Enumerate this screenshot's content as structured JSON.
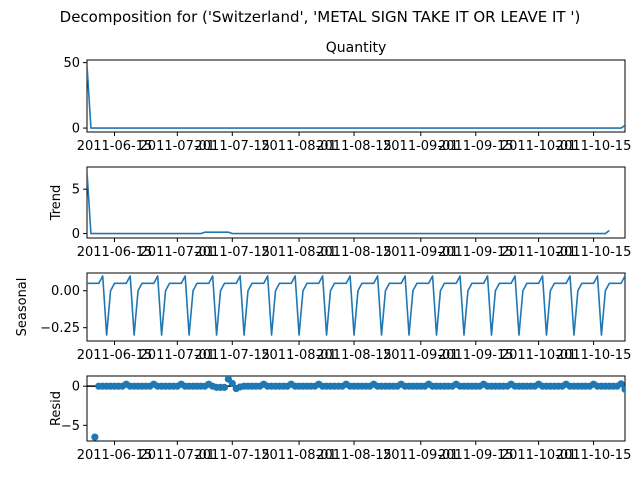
{
  "figure": {
    "suptitle": "Decomposition for ('Switzerland', 'METAL SIGN TAKE IT OR LEAVE IT ')"
  },
  "chart_data": [
    {
      "type": "line",
      "title": "Quantity",
      "ylabel": "",
      "xticks": [
        "2011-06-15",
        "2011-07-01",
        "2011-07-15",
        "2011-08-01",
        "2011-08-15",
        "2011-09-01",
        "2011-09-15",
        "2011-10-01",
        "2011-10-15"
      ],
      "yticks": [
        "0",
        "50"
      ],
      "ylim": [
        -3,
        52
      ],
      "x_start": "2011-06-08",
      "x_end": "2011-10-23",
      "series": [
        {
          "color": "#1f77b4",
          "values": [
            48,
            0,
            0,
            0,
            0,
            0,
            0,
            0,
            0,
            0,
            0,
            0,
            0,
            0,
            0,
            0,
            0,
            0,
            0,
            0,
            0,
            0,
            0,
            0,
            0,
            0,
            0,
            0,
            0,
            0,
            0,
            0,
            0,
            0,
            0,
            0,
            0,
            0,
            0,
            0,
            0,
            0,
            0,
            0,
            0,
            0,
            0,
            0,
            0,
            0,
            0,
            0,
            0,
            0,
            0,
            0,
            0,
            0,
            0,
            0,
            0,
            0,
            0,
            0,
            0,
            0,
            0,
            0,
            0,
            0,
            0,
            0,
            0,
            0,
            0,
            0,
            0,
            0,
            0,
            0,
            0,
            0,
            0,
            0,
            0,
            0,
            0,
            0,
            0,
            0,
            0,
            0,
            0,
            0,
            0,
            0,
            0,
            0,
            0,
            0,
            0,
            0,
            0,
            0,
            0,
            0,
            0,
            0,
            0,
            0,
            0,
            0,
            0,
            0,
            0,
            0,
            0,
            0,
            0,
            0,
            0,
            0,
            0,
            0,
            0,
            0,
            0,
            0,
            0,
            0,
            0,
            0,
            0,
            0,
            0,
            0,
            0,
            2
          ]
        }
      ]
    },
    {
      "type": "line",
      "title": "",
      "ylabel": "Trend",
      "xticks": [
        "2011-06-15",
        "2011-07-01",
        "2011-07-15",
        "2011-08-01",
        "2011-08-15",
        "2011-09-01",
        "2011-09-15",
        "2011-10-01",
        "2011-10-15"
      ],
      "yticks": [
        "0",
        "5"
      ],
      "ylim": [
        -0.5,
        7.5
      ],
      "x_start": "2011-06-08",
      "x_end": "2011-10-23",
      "series": [
        {
          "color": "#1f77b4",
          "values": [
            6.9,
            0,
            0,
            0,
            0,
            0,
            0,
            0,
            0,
            0,
            0,
            0,
            0,
            0,
            0,
            0,
            0,
            0,
            0,
            0,
            0,
            0,
            0,
            0,
            0,
            0,
            0,
            0,
            0,
            0,
            0.15,
            0.15,
            0.15,
            0.15,
            0.15,
            0.15,
            0.15,
            0,
            0,
            0,
            0,
            0,
            0,
            0,
            0,
            0,
            0,
            0,
            0,
            0,
            0,
            0,
            0,
            0,
            0,
            0,
            0,
            0,
            0,
            0,
            0,
            0,
            0,
            0,
            0,
            0,
            0,
            0,
            0,
            0,
            0,
            0,
            0,
            0,
            0,
            0,
            0,
            0,
            0,
            0,
            0,
            0,
            0,
            0,
            0,
            0,
            0,
            0,
            0,
            0,
            0,
            0,
            0,
            0,
            0,
            0,
            0,
            0,
            0,
            0,
            0,
            0,
            0,
            0,
            0,
            0,
            0,
            0,
            0,
            0,
            0,
            0,
            0,
            0,
            0,
            0,
            0,
            0,
            0,
            0,
            0,
            0,
            0,
            0,
            0,
            0,
            0,
            0,
            0,
            0,
            0,
            0,
            0,
            0.35
          ]
        }
      ]
    },
    {
      "type": "line",
      "title": "",
      "ylabel": "Seasonal",
      "xticks": [
        "2011-06-15",
        "2011-07-01",
        "2011-07-15",
        "2011-08-01",
        "2011-08-15",
        "2011-09-01",
        "2011-09-15",
        "2011-10-01",
        "2011-10-15"
      ],
      "yticks": [
        "0.00",
        "−0.25"
      ],
      "ylim": [
        -0.34,
        0.12
      ],
      "x_start": "2011-06-08",
      "x_end": "2011-10-23",
      "pattern_period": 7,
      "pattern": [
        0.05,
        0.05,
        0.05,
        0.05,
        0.1,
        -0.3,
        0.0
      ],
      "pattern_phase": 0
    },
    {
      "type": "scatter",
      "title": "",
      "ylabel": "Resid",
      "xticks": [
        "2011-06-15",
        "2011-07-01",
        "2011-07-15",
        "2011-08-01",
        "2011-08-15",
        "2011-09-01",
        "2011-09-15",
        "2011-10-01",
        "2011-10-15"
      ],
      "yticks": [
        "−5",
        "0"
      ],
      "ylim": [
        -7.0,
        1.3
      ],
      "x_start": "2011-06-08",
      "x_end": "2011-10-23",
      "baseline": 0,
      "points": [
        {
          "x": 2,
          "y": -6.5
        },
        {
          "x": 3,
          "y": 0
        },
        {
          "x": 4,
          "y": 0
        },
        {
          "x": 5,
          "y": 0
        },
        {
          "x": 6,
          "y": 0
        },
        {
          "x": 7,
          "y": 0
        },
        {
          "x": 8,
          "y": 0
        },
        {
          "x": 9,
          "y": 0
        },
        {
          "x": 10,
          "y": 0.25
        },
        {
          "x": 11,
          "y": 0
        },
        {
          "x": 12,
          "y": 0
        },
        {
          "x": 13,
          "y": 0
        },
        {
          "x": 14,
          "y": 0
        },
        {
          "x": 15,
          "y": 0
        },
        {
          "x": 16,
          "y": 0
        },
        {
          "x": 17,
          "y": 0.25
        },
        {
          "x": 18,
          "y": 0
        },
        {
          "x": 19,
          "y": 0
        },
        {
          "x": 20,
          "y": 0
        },
        {
          "x": 21,
          "y": 0
        },
        {
          "x": 22,
          "y": 0
        },
        {
          "x": 23,
          "y": 0
        },
        {
          "x": 24,
          "y": 0.25
        },
        {
          "x": 25,
          "y": 0
        },
        {
          "x": 26,
          "y": 0
        },
        {
          "x": 27,
          "y": 0
        },
        {
          "x": 28,
          "y": 0
        },
        {
          "x": 29,
          "y": 0
        },
        {
          "x": 30,
          "y": 0
        },
        {
          "x": 31,
          "y": 0.25
        },
        {
          "x": 32,
          "y": 0
        },
        {
          "x": 33,
          "y": -0.15
        },
        {
          "x": 34,
          "y": -0.15
        },
        {
          "x": 35,
          "y": -0.15
        },
        {
          "x": 36,
          "y": 0.9
        },
        {
          "x": 37,
          "y": 0.35
        },
        {
          "x": 38,
          "y": -0.3
        },
        {
          "x": 39,
          "y": -0.1
        },
        {
          "x": 40,
          "y": 0
        },
        {
          "x": 41,
          "y": 0
        },
        {
          "x": 42,
          "y": 0
        },
        {
          "x": 43,
          "y": 0
        },
        {
          "x": 44,
          "y": 0
        },
        {
          "x": 45,
          "y": 0.25
        },
        {
          "x": 46,
          "y": 0
        },
        {
          "x": 47,
          "y": 0
        },
        {
          "x": 48,
          "y": 0
        },
        {
          "x": 49,
          "y": 0
        },
        {
          "x": 50,
          "y": 0
        },
        {
          "x": 51,
          "y": 0
        },
        {
          "x": 52,
          "y": 0.25
        },
        {
          "x": 53,
          "y": 0
        },
        {
          "x": 54,
          "y": 0
        },
        {
          "x": 55,
          "y": 0
        },
        {
          "x": 56,
          "y": 0
        },
        {
          "x": 57,
          "y": 0
        },
        {
          "x": 58,
          "y": 0
        },
        {
          "x": 59,
          "y": 0.25
        },
        {
          "x": 60,
          "y": 0
        },
        {
          "x": 61,
          "y": 0
        },
        {
          "x": 62,
          "y": 0
        },
        {
          "x": 63,
          "y": 0
        },
        {
          "x": 64,
          "y": 0
        },
        {
          "x": 65,
          "y": 0
        },
        {
          "x": 66,
          "y": 0.25
        },
        {
          "x": 67,
          "y": 0
        },
        {
          "x": 68,
          "y": 0
        },
        {
          "x": 69,
          "y": 0
        },
        {
          "x": 70,
          "y": 0
        },
        {
          "x": 71,
          "y": 0
        },
        {
          "x": 72,
          "y": 0
        },
        {
          "x": 73,
          "y": 0.25
        },
        {
          "x": 74,
          "y": 0
        },
        {
          "x": 75,
          "y": 0
        },
        {
          "x": 76,
          "y": 0
        },
        {
          "x": 77,
          "y": 0
        },
        {
          "x": 78,
          "y": 0
        },
        {
          "x": 79,
          "y": 0
        },
        {
          "x": 80,
          "y": 0.25
        },
        {
          "x": 81,
          "y": 0
        },
        {
          "x": 82,
          "y": 0
        },
        {
          "x": 83,
          "y": 0
        },
        {
          "x": 84,
          "y": 0
        },
        {
          "x": 85,
          "y": 0
        },
        {
          "x": 86,
          "y": 0
        },
        {
          "x": 87,
          "y": 0.25
        },
        {
          "x": 88,
          "y": 0
        },
        {
          "x": 89,
          "y": 0
        },
        {
          "x": 90,
          "y": 0
        },
        {
          "x": 91,
          "y": 0
        },
        {
          "x": 92,
          "y": 0
        },
        {
          "x": 93,
          "y": 0
        },
        {
          "x": 94,
          "y": 0.25
        },
        {
          "x": 95,
          "y": 0
        },
        {
          "x": 96,
          "y": 0
        },
        {
          "x": 97,
          "y": 0
        },
        {
          "x": 98,
          "y": 0
        },
        {
          "x": 99,
          "y": 0
        },
        {
          "x": 100,
          "y": 0
        },
        {
          "x": 101,
          "y": 0.25
        },
        {
          "x": 102,
          "y": 0
        },
        {
          "x": 103,
          "y": 0
        },
        {
          "x": 104,
          "y": 0
        },
        {
          "x": 105,
          "y": 0
        },
        {
          "x": 106,
          "y": 0
        },
        {
          "x": 107,
          "y": 0
        },
        {
          "x": 108,
          "y": 0.25
        },
        {
          "x": 109,
          "y": 0
        },
        {
          "x": 110,
          "y": 0
        },
        {
          "x": 111,
          "y": 0
        },
        {
          "x": 112,
          "y": 0
        },
        {
          "x": 113,
          "y": 0
        },
        {
          "x": 114,
          "y": 0
        },
        {
          "x": 115,
          "y": 0.25
        },
        {
          "x": 116,
          "y": 0
        },
        {
          "x": 117,
          "y": 0
        },
        {
          "x": 118,
          "y": 0
        },
        {
          "x": 119,
          "y": 0
        },
        {
          "x": 120,
          "y": 0
        },
        {
          "x": 121,
          "y": 0
        },
        {
          "x": 122,
          "y": 0.25
        },
        {
          "x": 123,
          "y": 0
        },
        {
          "x": 124,
          "y": 0
        },
        {
          "x": 125,
          "y": 0
        },
        {
          "x": 126,
          "y": 0
        },
        {
          "x": 127,
          "y": 0
        },
        {
          "x": 128,
          "y": 0
        },
        {
          "x": 129,
          "y": 0.25
        },
        {
          "x": 130,
          "y": 0
        },
        {
          "x": 131,
          "y": 0
        },
        {
          "x": 132,
          "y": 0
        },
        {
          "x": 133,
          "y": 0
        },
        {
          "x": 134,
          "y": 0
        },
        {
          "x": 135,
          "y": 0
        },
        {
          "x": 136,
          "y": 0.3
        },
        {
          "x": 137,
          "y": -0.4
        }
      ]
    }
  ]
}
